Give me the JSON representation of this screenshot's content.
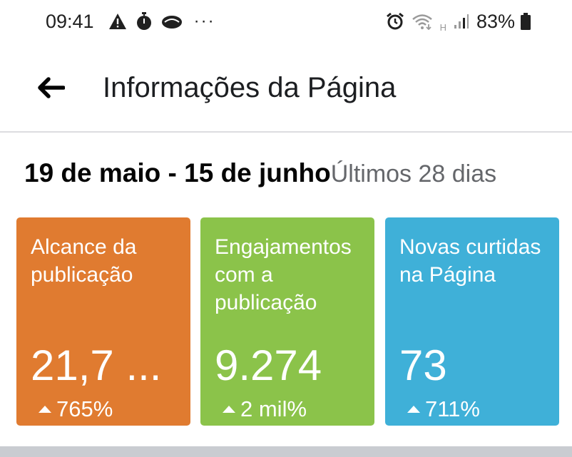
{
  "status_bar": {
    "time": "09:41",
    "left_icons": [
      "warning-icon",
      "stopwatch-icon",
      "cloud-icon"
    ],
    "more": "···",
    "right_icons": [
      "alarm-icon",
      "wifi-icon",
      "h-network-icon",
      "signal-icon"
    ],
    "network_label": "H",
    "battery_percent": "83%"
  },
  "header": {
    "title": "Informações da Página"
  },
  "date_filter": {
    "range": "19 de maio - 15 de junho",
    "period": "Últimos 28 dias"
  },
  "cards": [
    {
      "label": "Alcance da publicação",
      "value": "21,7 ...",
      "change": "765%",
      "color": "#e07b30"
    },
    {
      "label": "Engajamentos com a publicação",
      "value": "9.274",
      "change": "2 mil%",
      "color": "#8bc34a"
    },
    {
      "label": "Novas curtidas na Página",
      "value": "73",
      "change": "711%",
      "color": "#3fb0d8"
    }
  ]
}
